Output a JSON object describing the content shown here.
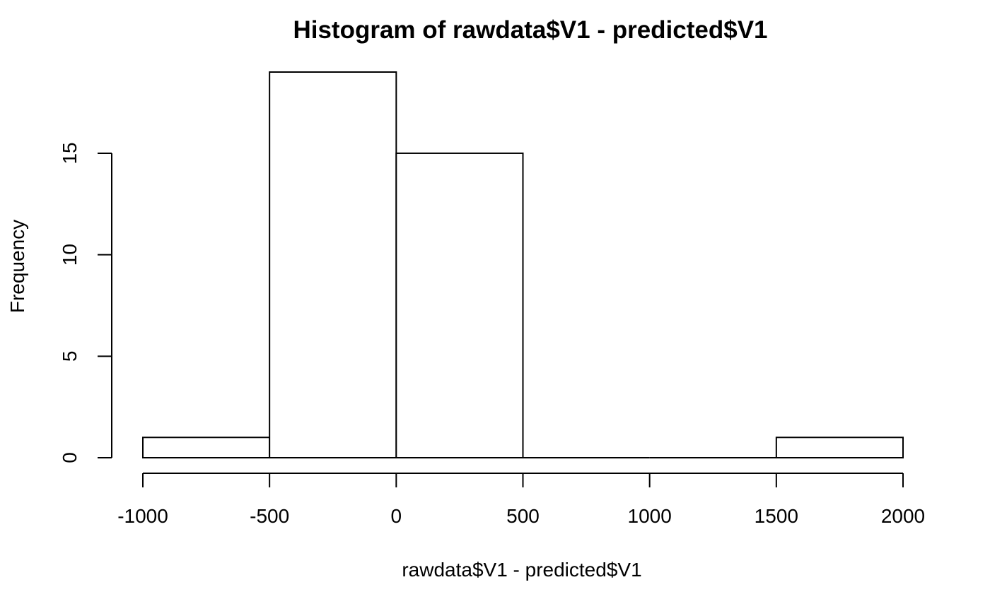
{
  "chart_data": {
    "type": "bar",
    "title": "Histogram of rawdata$V1 - predicted$V1",
    "xlabel": "rawdata$V1 - predicted$V1",
    "ylabel": "Frequency",
    "bins": [
      {
        "from": -1000,
        "to": -500,
        "count": 1
      },
      {
        "from": -500,
        "to": 0,
        "count": 19
      },
      {
        "from": 0,
        "to": 500,
        "count": 15
      },
      {
        "from": 500,
        "to": 1000,
        "count": 0
      },
      {
        "from": 1000,
        "to": 1500,
        "count": 0
      },
      {
        "from": 1500,
        "to": 2000,
        "count": 1
      }
    ],
    "xlim": [
      -1000,
      2000
    ],
    "ylim": [
      0,
      19
    ],
    "xticks": [
      -1000,
      -500,
      0,
      500,
      1000,
      1500,
      2000
    ],
    "xtick_labels": [
      "-1000",
      "-500",
      "0",
      "500",
      "1000",
      "1500",
      "2000"
    ],
    "yticks": [
      0,
      5,
      10,
      15
    ],
    "ytick_labels": [
      "0",
      "5",
      "10",
      "15"
    ],
    "grid": false,
    "colors": {
      "bar_fill": "#ffffff",
      "bar_stroke": "#000000"
    }
  }
}
